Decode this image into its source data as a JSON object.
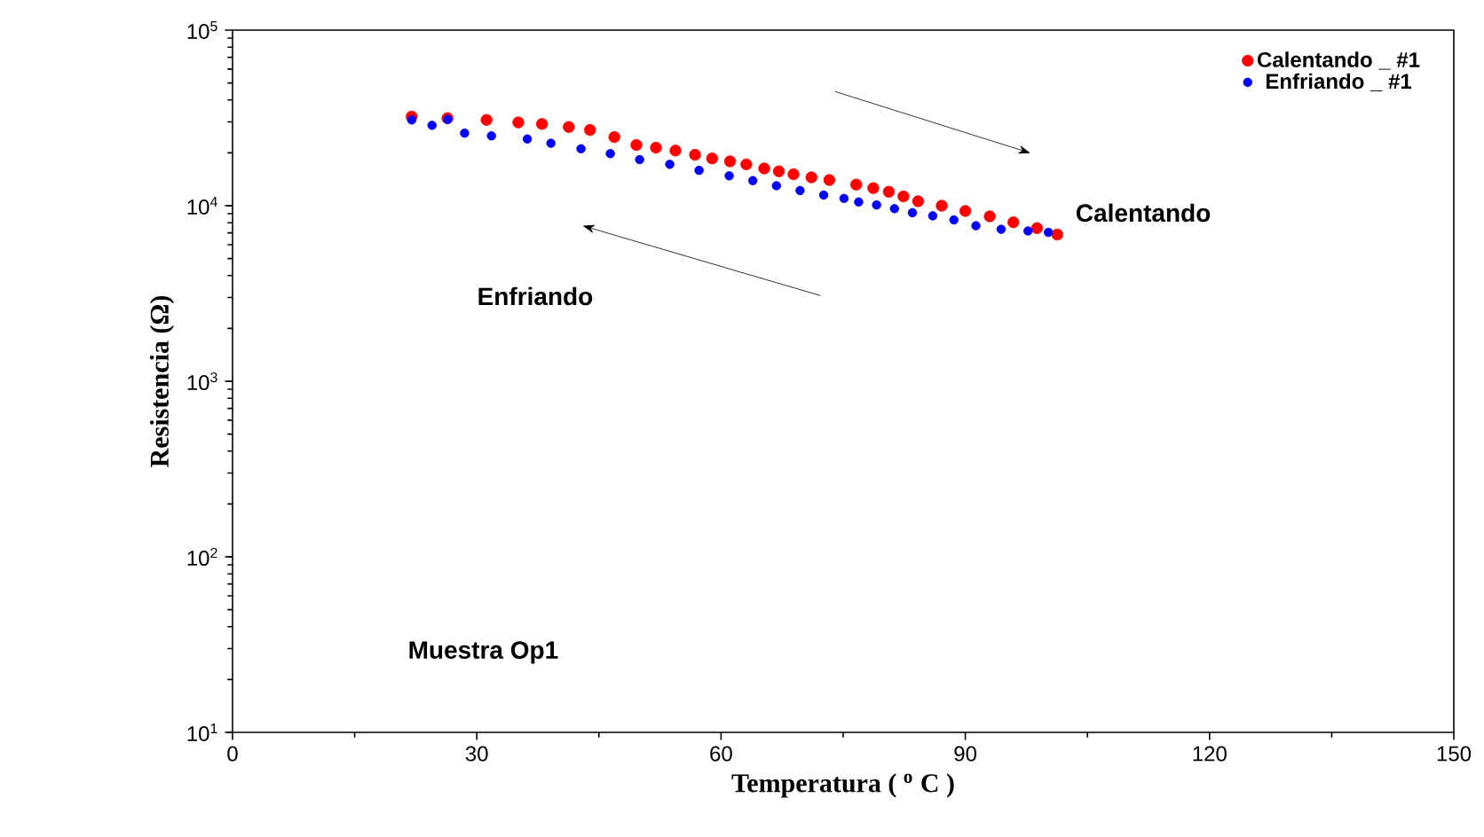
{
  "chart_data": {
    "type": "scatter",
    "xlabel": "Temperatura ( $^{o}$ C )",
    "ylabel": "Resistencia (Ω)",
    "xlim": [
      0,
      150
    ],
    "xticks": [
      0,
      30,
      60,
      90,
      120,
      150
    ],
    "ylim": [
      10,
      100000
    ],
    "yticks": [
      {
        "value": 10,
        "label": "10$^{1}$"
      },
      {
        "value": 100,
        "label": "10$^{2}$"
      },
      {
        "value": 1000,
        "label": "10$^{3}$"
      },
      {
        "value": 10000,
        "label": "10$^{4}$"
      },
      {
        "value": 100000,
        "label": "10$^{5}$"
      }
    ],
    "log": "y",
    "legend": "top right",
    "marker": "circle",
    "grid": false,
    "annotations": [
      "Calentando",
      "Enfriando",
      "Muestra Op1"
    ],
    "series": [
      {
        "name": "Calentando _ #1",
        "color": "#ff0000",
        "x": [
          22.0,
          26.4,
          31.2,
          35.1,
          38.0,
          41.3,
          43.9,
          46.9,
          49.6,
          52.0,
          54.4,
          56.8,
          58.9,
          61.1,
          63.1,
          65.3,
          67.1,
          68.9,
          71.1,
          73.3,
          76.6,
          78.7,
          80.6,
          82.4,
          84.2,
          87.1,
          90.0,
          93.0,
          95.9,
          98.8,
          101.3
        ],
        "values": [
          32200,
          31500,
          30800,
          29800,
          29200,
          28100,
          27000,
          24600,
          22200,
          21400,
          20600,
          19500,
          18600,
          17900,
          17200,
          16300,
          15700,
          15100,
          14500,
          14000,
          13200,
          12600,
          12000,
          11300,
          10600,
          10000,
          9330,
          8700,
          8050,
          7450,
          6850
        ]
      },
      {
        "name": "Enfriando _ #1",
        "color": "#0000ff",
        "x": [
          22.0,
          24.5,
          26.4,
          28.5,
          31.8,
          36.2,
          39.1,
          42.8,
          46.4,
          50.0,
          53.7,
          57.3,
          61.0,
          63.9,
          66.8,
          69.7,
          72.6,
          75.1,
          76.9,
          79.1,
          81.3,
          83.5,
          86.0,
          88.6,
          91.3,
          94.4,
          97.7,
          100.2
        ],
        "values": [
          30800,
          28700,
          31000,
          25900,
          25000,
          24000,
          22700,
          21100,
          19800,
          18300,
          17200,
          15900,
          14800,
          13900,
          13000,
          12200,
          11500,
          11000,
          10500,
          10100,
          9620,
          9120,
          8760,
          8300,
          7690,
          7340,
          7180,
          7050
        ]
      }
    ]
  }
}
